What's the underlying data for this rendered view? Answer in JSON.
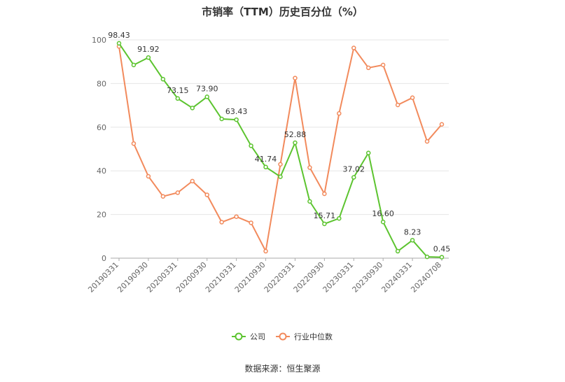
{
  "chart_data": {
    "type": "line",
    "title": "市销率（TTM）历史百分位（%）",
    "ylim": [
      0,
      100
    ],
    "yticks": [
      0,
      20,
      40,
      60,
      80,
      100
    ],
    "grid": true,
    "legend_position": "bottom-center",
    "x": [
      "20190331",
      "20190630",
      "20190930",
      "20191231",
      "20200331",
      "20200630",
      "20200930",
      "20201231",
      "20210331",
      "20210630",
      "20210930",
      "20211231",
      "20220331",
      "20220630",
      "20220930",
      "20221231",
      "20230331",
      "20230630",
      "20230930",
      "20231231",
      "20240331",
      "20240630",
      "20240708"
    ],
    "x_tick_labels": [
      "20190331",
      "20190930",
      "20200331",
      "20200930",
      "20210331",
      "20210930",
      "20220331",
      "20220930",
      "20230331",
      "20230930",
      "20240331",
      "20240708"
    ],
    "series": [
      {
        "name": "公司",
        "color": "#5cc42f",
        "values": [
          98.43,
          88.5,
          91.92,
          82.0,
          73.15,
          68.8,
          73.9,
          63.8,
          63.43,
          51.5,
          41.74,
          37.3,
          52.88,
          26.0,
          15.71,
          18.2,
          37.02,
          48.2,
          16.6,
          3.2,
          8.23,
          0.6,
          0.45
        ],
        "labels": {
          "0": "98.43",
          "2": "91.92",
          "4": "73.15",
          "6": "73.90",
          "8": "63.43",
          "10": "41.74",
          "12": "52.88",
          "14": "15.71",
          "16": "37.02",
          "18": "16.60",
          "20": "8.23",
          "22": "0.45"
        }
      },
      {
        "name": "行业中位数",
        "color": "#f28a5c",
        "values": [
          97.0,
          52.5,
          37.5,
          28.3,
          30.0,
          35.3,
          29.0,
          16.5,
          19.0,
          16.2,
          3.2,
          43.0,
          82.5,
          41.5,
          29.5,
          66.3,
          96.3,
          87.2,
          88.5,
          70.2,
          73.5,
          53.5,
          61.3
        ]
      }
    ]
  },
  "legend": {
    "items": [
      "公司",
      "行业中位数"
    ]
  },
  "source_text": "数据来源：恒生聚源"
}
